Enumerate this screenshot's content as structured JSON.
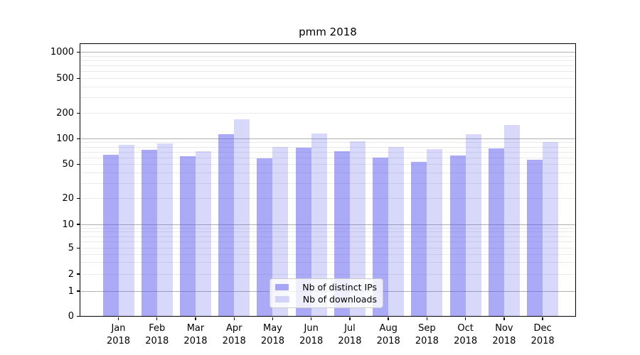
{
  "title": "pmm 2018",
  "legend": {
    "items": [
      {
        "label": "Nb of distinct IPs",
        "swatch_color": "rgba(85,85,238,0.5)"
      },
      {
        "label": "Nb of downloads",
        "swatch_color": "rgba(85,85,238,0.23)"
      }
    ]
  },
  "chart_data": {
    "type": "bar",
    "title": "pmm 2018",
    "categories": [
      "Jan",
      "Feb",
      "Mar",
      "Apr",
      "May",
      "Jun",
      "Jul",
      "Aug",
      "Sep",
      "Oct",
      "Nov",
      "Dec"
    ],
    "year": "2018",
    "series": [
      {
        "name": "Nb of distinct IPs",
        "values": [
          65,
          74,
          62,
          113,
          59,
          78,
          71,
          60,
          54,
          63,
          77,
          57
        ],
        "color": "rgba(85,85,238,0.5)"
      },
      {
        "name": "Nb of downloads",
        "values": [
          85,
          88,
          72,
          170,
          80,
          115,
          94,
          80,
          75,
          113,
          145,
          92
        ],
        "color": "rgba(85,85,238,0.23)"
      }
    ],
    "xlabel": "",
    "ylabel": "",
    "yscale": "symlog",
    "ylim": [
      0,
      1300
    ],
    "yticks": [
      0,
      1,
      2,
      5,
      10,
      20,
      50,
      100,
      200,
      500,
      1000
    ],
    "ytick_labels": [
      "0",
      "1",
      "2",
      "5",
      "10",
      "20",
      "50",
      "100",
      "200",
      "500",
      "1000"
    ],
    "grid": "on",
    "legend_position": "lower center"
  },
  "colors": {
    "bar_dark": "rgba(85,85,238,0.5)",
    "bar_light": "rgba(85,85,238,0.23)",
    "grid_major": "#b0b0b0",
    "grid_minor": "#e9e9e9",
    "spine": "#000000",
    "background": "#ffffff"
  }
}
